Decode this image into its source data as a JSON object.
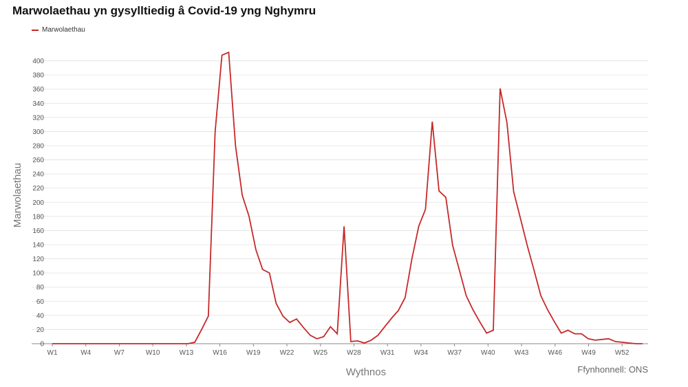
{
  "chart_data": {
    "type": "line",
    "title": "Marwolaethau yn gysylltiedig â Covid-19 yng Nghymru",
    "xlabel": "Wythnos",
    "ylabel": "Marwolaethau",
    "source": "Ffynhonnell: ONS",
    "legend_position": "top-left",
    "grid": true,
    "ylim": [
      0,
      420
    ],
    "yticks": [
      0,
      20,
      40,
      60,
      80,
      100,
      120,
      140,
      160,
      180,
      200,
      220,
      240,
      260,
      280,
      300,
      320,
      340,
      360,
      380,
      400
    ],
    "xtick_labels": [
      "W1",
      "W4",
      "W7",
      "W10",
      "W13",
      "W16",
      "W19",
      "W22",
      "W25",
      "W28",
      "W31",
      "W34",
      "W37",
      "W40",
      "W43",
      "W46",
      "W49",
      "W52"
    ],
    "series": [
      {
        "name": "Marwolaethau",
        "color": "#c62828",
        "points": [
          [
            0,
            0
          ],
          [
            1,
            0
          ],
          [
            2,
            0
          ],
          [
            3,
            0
          ],
          [
            4,
            0
          ],
          [
            5,
            0
          ],
          [
            6,
            0
          ],
          [
            7,
            0
          ],
          [
            8,
            0
          ],
          [
            9,
            0
          ],
          [
            10,
            0
          ],
          [
            11,
            0
          ],
          [
            12,
            0
          ],
          [
            13,
            0
          ],
          [
            14,
            0
          ],
          [
            15,
            0
          ],
          [
            16,
            0
          ],
          [
            17,
            0
          ],
          [
            18,
            0
          ],
          [
            19,
            0
          ],
          [
            20,
            0
          ],
          [
            21,
            2
          ],
          [
            22,
            20
          ],
          [
            23,
            39
          ],
          [
            24,
            300
          ],
          [
            25,
            408
          ],
          [
            26,
            412
          ],
          [
            27,
            280
          ],
          [
            28,
            210
          ],
          [
            29,
            180
          ],
          [
            30,
            133
          ],
          [
            31,
            105
          ],
          [
            32,
            100
          ],
          [
            33,
            57
          ],
          [
            34,
            39
          ],
          [
            35,
            30
          ],
          [
            36,
            35
          ],
          [
            37,
            23
          ],
          [
            38,
            12
          ],
          [
            39,
            7
          ],
          [
            40,
            10
          ],
          [
            41,
            24
          ],
          [
            42,
            14
          ],
          [
            43,
            166
          ],
          [
            44,
            3
          ],
          [
            45,
            4
          ],
          [
            46,
            1
          ],
          [
            47,
            5
          ],
          [
            48,
            12
          ],
          [
            49,
            24
          ],
          [
            50,
            36
          ],
          [
            51,
            47
          ],
          [
            52,
            65
          ],
          [
            53,
            120
          ],
          [
            54,
            166
          ],
          [
            55,
            190
          ],
          [
            56,
            314
          ],
          [
            57,
            216
          ],
          [
            58,
            207
          ],
          [
            59,
            139
          ],
          [
            60,
            104
          ],
          [
            61,
            68
          ],
          [
            62,
            48
          ],
          [
            63,
            31
          ],
          [
            64,
            15
          ],
          [
            65,
            19
          ],
          [
            66,
            361
          ],
          [
            67,
            313
          ],
          [
            68,
            215
          ],
          [
            69,
            177
          ],
          [
            70,
            139
          ],
          [
            71,
            104
          ],
          [
            72,
            68
          ],
          [
            73,
            48
          ],
          [
            74,
            31
          ],
          [
            75,
            15
          ],
          [
            76,
            19
          ],
          [
            77,
            14
          ],
          [
            78,
            14
          ],
          [
            79,
            7
          ],
          [
            80,
            5
          ],
          [
            81,
            6
          ],
          [
            82,
            7
          ],
          [
            83,
            3
          ],
          [
            84,
            2
          ],
          [
            85,
            1
          ],
          [
            86,
            0
          ],
          [
            87,
            0
          ]
        ]
      }
    ]
  },
  "colors": {
    "series": "#c62828",
    "grid": "#e0e0e0",
    "axis": "#888888"
  }
}
